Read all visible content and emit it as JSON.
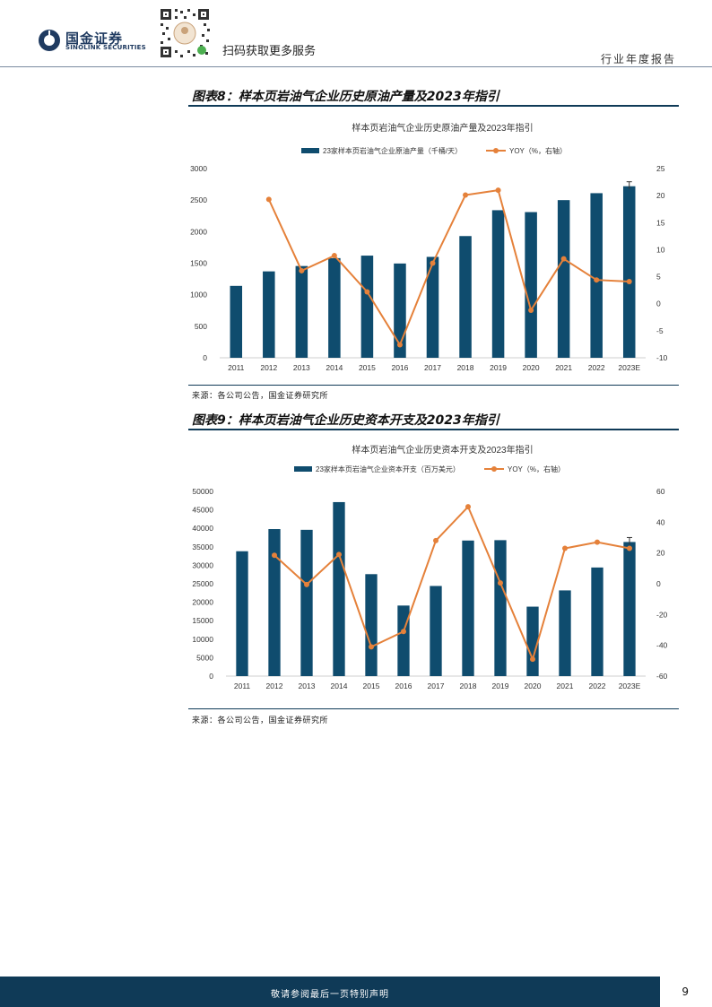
{
  "header": {
    "logo_cn": "国金证券",
    "logo_en": "SINOLINK SECURITIES",
    "scan_text": "扫码获取更多服务",
    "report_type": "行业年度报告"
  },
  "figures": [
    {
      "caption": "图表8：样本页岩油气企业历史原油产量及2023年指引",
      "source": "来源：各公司公告，国金证券研究所"
    },
    {
      "caption": "图表9：样本页岩油气企业历史资本开支及2023年指引",
      "source": "来源：各公司公告，国金证券研究所"
    }
  ],
  "chart_data": [
    {
      "type": "bar",
      "title": "样本页岩油气企业历史原油产量及2023年指引",
      "categories": [
        "2011",
        "2012",
        "2013",
        "2014",
        "2015",
        "2016",
        "2017",
        "2018",
        "2019",
        "2020",
        "2021",
        "2022",
        "2023E"
      ],
      "series": [
        {
          "name": "23家样本页岩油气企业原油产量（千桶/天）",
          "type": "bar",
          "axis": "left",
          "values": [
            1140,
            1370,
            1455,
            1580,
            1620,
            1495,
            1600,
            1930,
            2340,
            2310,
            2500,
            2610,
            2720
          ]
        },
        {
          "name": "YOY（%，右轴）",
          "type": "line",
          "axis": "right",
          "values": [
            null,
            19.3,
            6.1,
            8.9,
            2.2,
            -7.6,
            7.5,
            20.1,
            21.0,
            -1.2,
            8.3,
            4.4,
            4.1
          ]
        }
      ],
      "ylim_left": [
        0,
        3000
      ],
      "yticks_left": [
        "3000",
        "2500",
        "2000",
        "1500",
        "1000",
        "500",
        "0"
      ],
      "ylim_right": [
        -10,
        25
      ],
      "yticks_right": [
        "25",
        "20",
        "15",
        "10",
        "5",
        "0",
        "-5",
        "-10"
      ],
      "colors": {
        "bar": "#0f4c6e",
        "line": "#e5813a"
      },
      "legend": "top"
    },
    {
      "type": "bar",
      "title": "样本页岩油气企业历史资本开支及2023年指引",
      "categories": [
        "2011",
        "2012",
        "2013",
        "2014",
        "2015",
        "2016",
        "2017",
        "2018",
        "2019",
        "2020",
        "2021",
        "2022",
        "2023E"
      ],
      "series": [
        {
          "name": "23家样本页岩油气企业资本开支（百万美元）",
          "type": "bar",
          "axis": "left",
          "values": [
            33800,
            39800,
            39600,
            47100,
            27600,
            19100,
            24400,
            36700,
            36800,
            18800,
            23200,
            29400,
            36300
          ]
        },
        {
          "name": "YOY（%，右轴）",
          "type": "line",
          "axis": "right",
          "values": [
            null,
            18.5,
            -0.5,
            19,
            -41,
            -31,
            28,
            50,
            0.5,
            -49,
            23,
            27,
            23
          ]
        }
      ],
      "ylim_left": [
        0,
        50000
      ],
      "yticks_left": [
        "50000",
        "45000",
        "40000",
        "35000",
        "30000",
        "25000",
        "20000",
        "15000",
        "10000",
        "5000",
        "0"
      ],
      "ylim_right": [
        -60,
        60
      ],
      "yticks_right": [
        "60",
        "40",
        "20",
        "0",
        "-20",
        "-40",
        "-60"
      ],
      "colors": {
        "bar": "#0f4c6e",
        "line": "#e5813a"
      },
      "legend": "top"
    }
  ],
  "footer": {
    "disclaimer": "敬请参阅最后一页特别声明",
    "page_number": "9"
  }
}
